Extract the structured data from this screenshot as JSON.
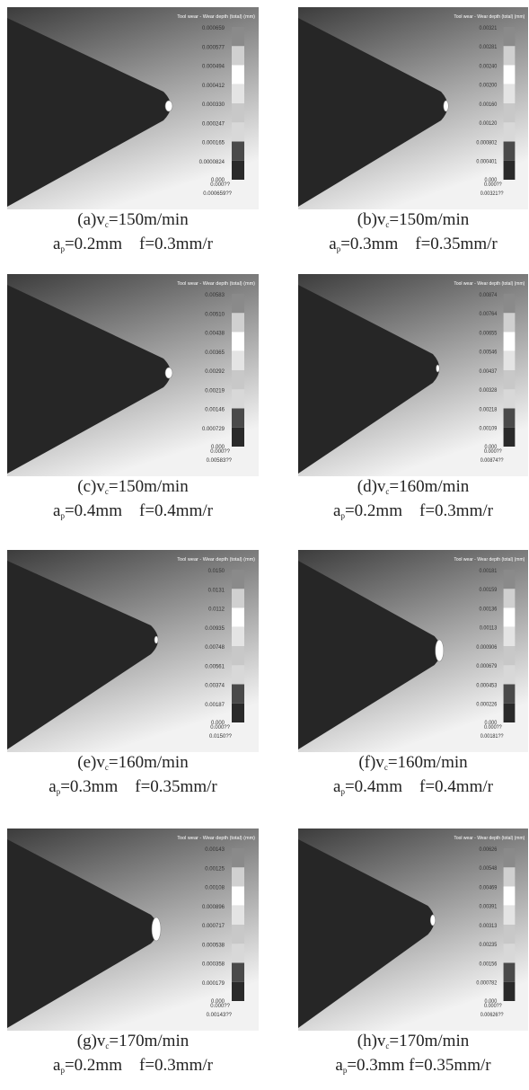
{
  "panels": [
    {
      "title": "Tool wear - Wear depth (total) (mm)",
      "legend": [
        "0.000659",
        "0.000577",
        "0.000494",
        "0.000412",
        "0.000330",
        "0.000247",
        "0.000165",
        "0.0000824",
        "0.000",
        "0.000??",
        "0.000659??"
      ],
      "caption": {
        "line1": {
          "text": "(a)v",
          "sub": "c",
          "rest": "=150m/min"
        },
        "line2": {
          "text": "a",
          "sub": "p",
          "rest": "=0.2mm    f=0.3mm/r"
        }
      }
    },
    {
      "title": "Tool wear - Wear depth (total) (mm)",
      "legend": [
        "0.00321",
        "0.00281",
        "0.00240",
        "0.00200",
        "0.00160",
        "0.00120",
        "0.000802",
        "0.000401",
        "0.000",
        "0.000??",
        "0.00321??"
      ],
      "caption": {
        "line1": {
          "text": "(b)v",
          "sub": "c",
          "rest": "=150m/min"
        },
        "line2": {
          "text": "a",
          "sub": "p",
          "rest": "=0.3mm    f=0.35mm/r"
        }
      }
    },
    {
      "title": "Tool wear - Wear depth (total) (mm)",
      "legend": [
        "0.00583",
        "0.00510",
        "0.00438",
        "0.00365",
        "0.00292",
        "0.00219",
        "0.00146",
        "0.000729",
        "0.000",
        "0.000??",
        "0.00583??"
      ],
      "caption": {
        "line1": {
          "text": "(c)v",
          "sub": "c",
          "rest": "=150m/min"
        },
        "line2": {
          "text": "a",
          "sub": "p",
          "rest": "=0.4mm    f=0.4mm/r"
        }
      }
    },
    {
      "title": "Tool wear - Wear depth (total) (mm)",
      "legend": [
        "0.00874",
        "0.00764",
        "0.00655",
        "0.00546",
        "0.00437",
        "0.00328",
        "0.00218",
        "0.00109",
        "0.000",
        "0.000??",
        "0.00874??"
      ],
      "caption": {
        "line1": {
          "text": "(d)v",
          "sub": "c",
          "rest": "=160m/min"
        },
        "line2": {
          "text": "a",
          "sub": "p",
          "rest": "=0.2mm    f=0.3mm/r"
        }
      }
    },
    {
      "title": "Tool wear - Wear depth (total) (mm)",
      "legend": [
        "0.0150",
        "0.0131",
        "0.0112",
        "0.00935",
        "0.00748",
        "0.00561",
        "0.00374",
        "0.00187",
        "0.000",
        "0.000??",
        "0.0150??"
      ],
      "caption": {
        "line1": {
          "text": "(e)v",
          "sub": "c",
          "rest": "=160m/min"
        },
        "line2": {
          "text": "a",
          "sub": "p",
          "rest": "=0.3mm    f=0.35mm/r"
        }
      }
    },
    {
      "title": "Tool wear - Wear depth (total) (mm)",
      "legend": [
        "0.00181",
        "0.00159",
        "0.00136",
        "0.00113",
        "0.000906",
        "0.000679",
        "0.000453",
        "0.000226",
        "0.000",
        "0.000??",
        "0.00181??"
      ],
      "caption": {
        "line1": {
          "text": "(f)v",
          "sub": "c",
          "rest": "=160m/min"
        },
        "line2": {
          "text": "a",
          "sub": "p",
          "rest": "=0.4mm    f=0.4mm/r"
        }
      }
    },
    {
      "title": "Tool wear - Wear depth (total) (mm)",
      "legend": [
        "0.00143",
        "0.00125",
        "0.00108",
        "0.000896",
        "0.000717",
        "0.000538",
        "0.000358",
        "0.000179",
        "0.000",
        "0.000??",
        "0.00143??"
      ],
      "caption": {
        "line1": {
          "text": "(g)v",
          "sub": "c",
          "rest": "=170m/min"
        },
        "line2": {
          "text": "a",
          "sub": "p",
          "rest": "=0.2mm    f=0.3mm/r"
        }
      }
    },
    {
      "title": "Tool wear - Wear depth (total) (mm)",
      "legend": [
        "0.00626",
        "0.00548",
        "0.00469",
        "0.00391",
        "0.00313",
        "0.00235",
        "0.00156",
        "0.000782",
        "0.000",
        "0.000??",
        "0.00626??"
      ],
      "caption": {
        "line1": {
          "text": "(h)v",
          "sub": "c",
          "rest": "=170m/min"
        },
        "line2": {
          "text": "a",
          "sub": "p",
          "rest": "=0.3mm f=0.35mm/r"
        }
      }
    }
  ]
}
